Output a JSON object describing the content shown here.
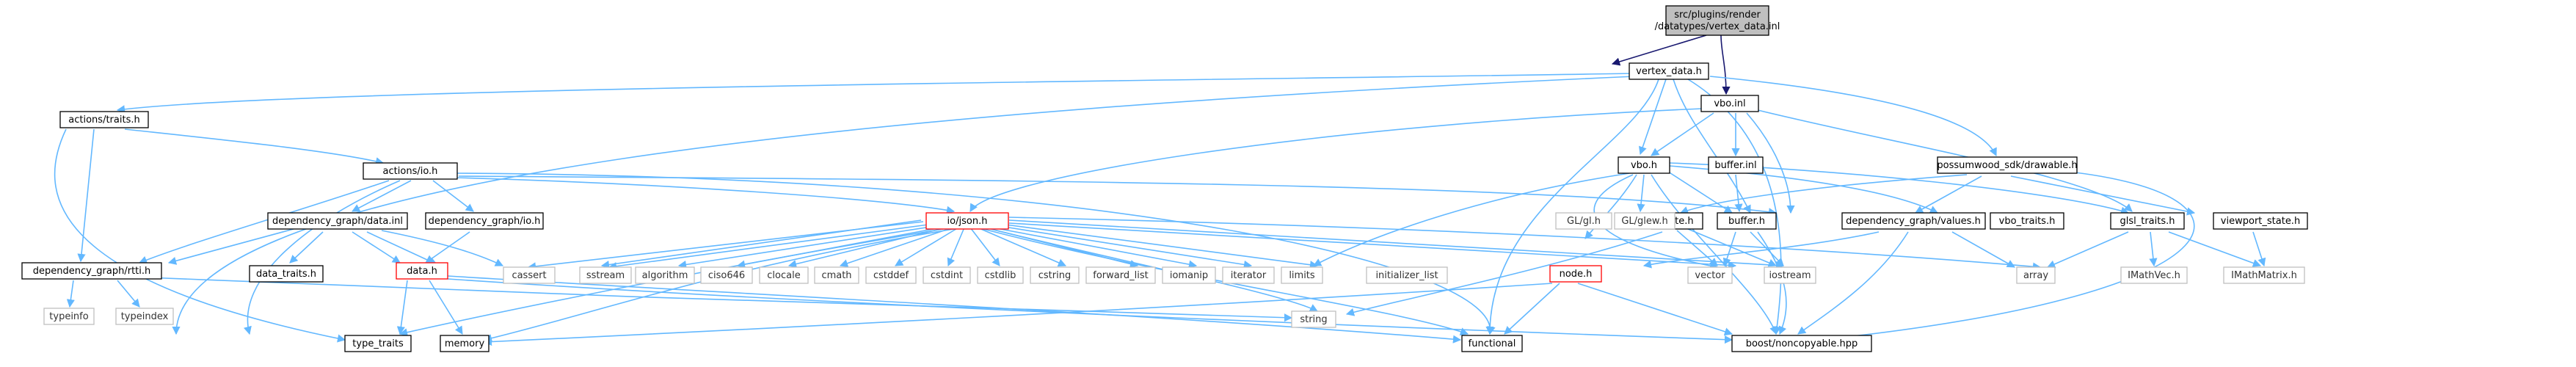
{
  "nodes": {
    "root": {
      "line1": "src/plugins/render",
      "line2": "/datatypes/vertex_data.inl"
    },
    "vertex_data_h": "vertex_data.h",
    "vbo_inl": "vbo.inl",
    "actions_traits_h": "actions/traits.h",
    "actions_io_h": "actions/io.h",
    "vbo_h": "vbo.h",
    "buffer_inl": "buffer.inl",
    "possumwood_drawable_h": "possumwood_sdk/drawable.h",
    "dep_data_inl": "dependency_graph/data.inl",
    "dep_io_h": "dependency_graph/io.h",
    "io_json_h": "io/json.h",
    "state_h": "state.h",
    "buffer_h": "buffer.h",
    "dep_values_h": "dependency_graph/values.h",
    "vbo_traits_h": "vbo_traits.h",
    "glsl_traits_h": "glsl_traits.h",
    "viewport_state_h": "viewport_state.h",
    "dep_rtti_h": "dependency_graph/rtti.h",
    "data_traits_h": "data_traits.h",
    "data_h": "data.h",
    "node_h": "node.h",
    "gl_gl_h": "GL/gl.h",
    "gl_glew_h": "GL/glew.h",
    "typeinfo": "typeinfo",
    "typeindex": "typeindex",
    "type_traits": "type_traits",
    "memory": "memory",
    "sstream": "sstream",
    "cassert": "cassert",
    "algorithm": "algorithm",
    "ciso646": "ciso646",
    "clocale": "clocale",
    "cmath": "cmath",
    "cstddef": "cstddef",
    "cstdint": "cstdint",
    "cstdlib": "cstdlib",
    "cstring": "cstring",
    "forward_list": "forward_list",
    "iomanip": "iomanip",
    "iterator": "iterator",
    "limits": "limits",
    "initializer_list": "initializer_list",
    "vector": "vector",
    "iostream": "iostream",
    "array": "array",
    "imath_vec": "IMathVec.h",
    "imath_matrix": "IMathMatrix.h",
    "string": "string",
    "functional": "functional",
    "boost_noncopyable": "boost/noncopyable.hpp"
  }
}
